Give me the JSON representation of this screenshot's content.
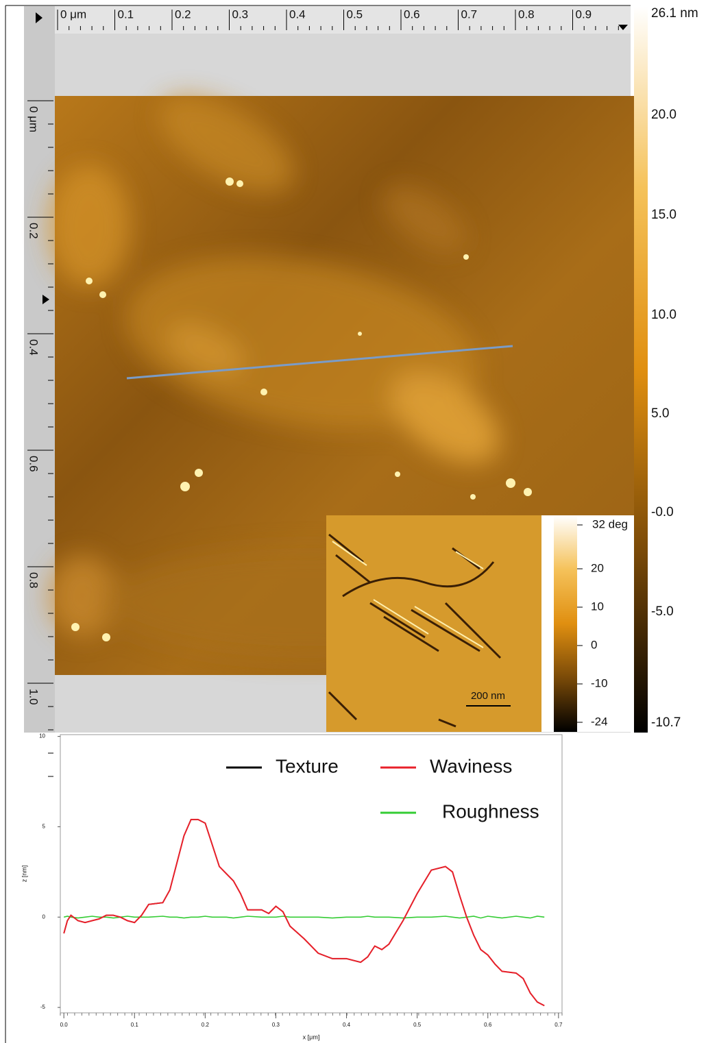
{
  "afm_image": {
    "top_ruler": [
      "0 μm",
      "0.1",
      "0.2",
      "0.3",
      "0.4",
      "0.5",
      "0.6",
      "0.7",
      "0.8",
      "0.9"
    ],
    "left_ruler": [
      "0 μm",
      "0.2",
      "0.4",
      "0.6",
      "0.8",
      "1.0"
    ],
    "height_scale": [
      "26.1 nm",
      "20.0",
      "15.0",
      "10.0",
      "5.0",
      "-0.0",
      "-5.0",
      "-10.7"
    ],
    "phase_inset": {
      "scale_labels": [
        "32 deg",
        "20",
        "10",
        "0",
        "-10",
        "-24"
      ],
      "scale_bar": "200 nm"
    }
  },
  "chart_data": {
    "type": "line",
    "x_label": "x [μm]",
    "y_label": "z [nm]",
    "x": [
      0.0,
      0.005,
      0.01,
      0.02,
      0.03,
      0.04,
      0.05,
      0.06,
      0.07,
      0.08,
      0.09,
      0.1,
      0.11,
      0.12,
      0.14,
      0.15,
      0.16,
      0.17,
      0.18,
      0.19,
      0.2,
      0.21,
      0.22,
      0.23,
      0.24,
      0.25,
      0.26,
      0.28,
      0.29,
      0.3,
      0.31,
      0.32,
      0.34,
      0.36,
      0.38,
      0.4,
      0.42,
      0.43,
      0.44,
      0.45,
      0.46,
      0.48,
      0.5,
      0.52,
      0.54,
      0.55,
      0.56,
      0.57,
      0.58,
      0.59,
      0.6,
      0.61,
      0.62,
      0.64,
      0.65,
      0.66,
      0.67,
      0.68
    ],
    "series": [
      {
        "name": "Texture",
        "color": "#000000",
        "values": [
          -0.9,
          -0.2,
          0.1,
          -0.2,
          -0.3,
          -0.2,
          -0.1,
          0.1,
          0.1,
          0.0,
          -0.2,
          -0.3,
          0.1,
          0.7,
          0.8,
          1.5,
          3.0,
          4.5,
          5.4,
          5.4,
          5.2,
          4.0,
          2.8,
          2.4,
          2.0,
          1.3,
          0.4,
          0.4,
          0.2,
          0.6,
          0.3,
          -0.5,
          -1.2,
          -2.0,
          -2.3,
          -2.3,
          -2.5,
          -2.2,
          -1.6,
          -1.8,
          -1.5,
          -0.2,
          1.3,
          2.6,
          2.8,
          2.5,
          1.2,
          0.0,
          -1.0,
          -1.8,
          -2.1,
          -2.6,
          -3.0,
          -3.1,
          -3.4,
          -4.2,
          -4.7,
          -4.9
        ]
      },
      {
        "name": "Waviness",
        "color": "#e8202a",
        "values": [
          -0.9,
          -0.2,
          0.1,
          -0.2,
          -0.3,
          -0.2,
          -0.1,
          0.1,
          0.1,
          0.0,
          -0.2,
          -0.3,
          0.1,
          0.7,
          0.8,
          1.5,
          3.0,
          4.5,
          5.4,
          5.4,
          5.2,
          4.0,
          2.8,
          2.4,
          2.0,
          1.3,
          0.4,
          0.4,
          0.2,
          0.6,
          0.3,
          -0.5,
          -1.2,
          -2.0,
          -2.3,
          -2.3,
          -2.5,
          -2.2,
          -1.6,
          -1.8,
          -1.5,
          -0.2,
          1.3,
          2.6,
          2.8,
          2.5,
          1.2,
          0.0,
          -1.0,
          -1.8,
          -2.1,
          -2.6,
          -3.0,
          -3.1,
          -3.4,
          -4.2,
          -4.7,
          -4.9
        ]
      },
      {
        "name": "Roughness",
        "color": "#33cc33",
        "values": [
          0.0,
          0.05,
          0.0,
          -0.05,
          0.0,
          0.05,
          0.0,
          0.0,
          -0.05,
          0.0,
          0.05,
          0.0,
          0.0,
          0.0,
          0.05,
          0.0,
          0.0,
          -0.05,
          0.0,
          0.0,
          0.05,
          0.0,
          0.0,
          0.0,
          -0.05,
          0.0,
          0.05,
          0.0,
          0.0,
          0.0,
          0.05,
          0.0,
          0.0,
          0.0,
          -0.05,
          0.0,
          0.0,
          0.05,
          0.0,
          0.0,
          0.0,
          -0.05,
          0.0,
          0.0,
          0.05,
          0.0,
          -0.05,
          0.0,
          0.05,
          -0.05,
          0.05,
          0.0,
          -0.05,
          0.05,
          0.0,
          -0.05,
          0.05,
          0.0
        ]
      }
    ],
    "xlim": [
      -0.005,
      0.705
    ],
    "ylim": [
      -5.3,
      10.1
    ],
    "xticks": [
      {
        "value": 0,
        "label": "0.0"
      },
      0.1,
      0.2,
      0.3,
      0.4,
      0.5,
      0.6,
      0.7
    ],
    "yticks": [
      -5,
      0,
      5,
      10
    ],
    "legend": "top-right"
  }
}
